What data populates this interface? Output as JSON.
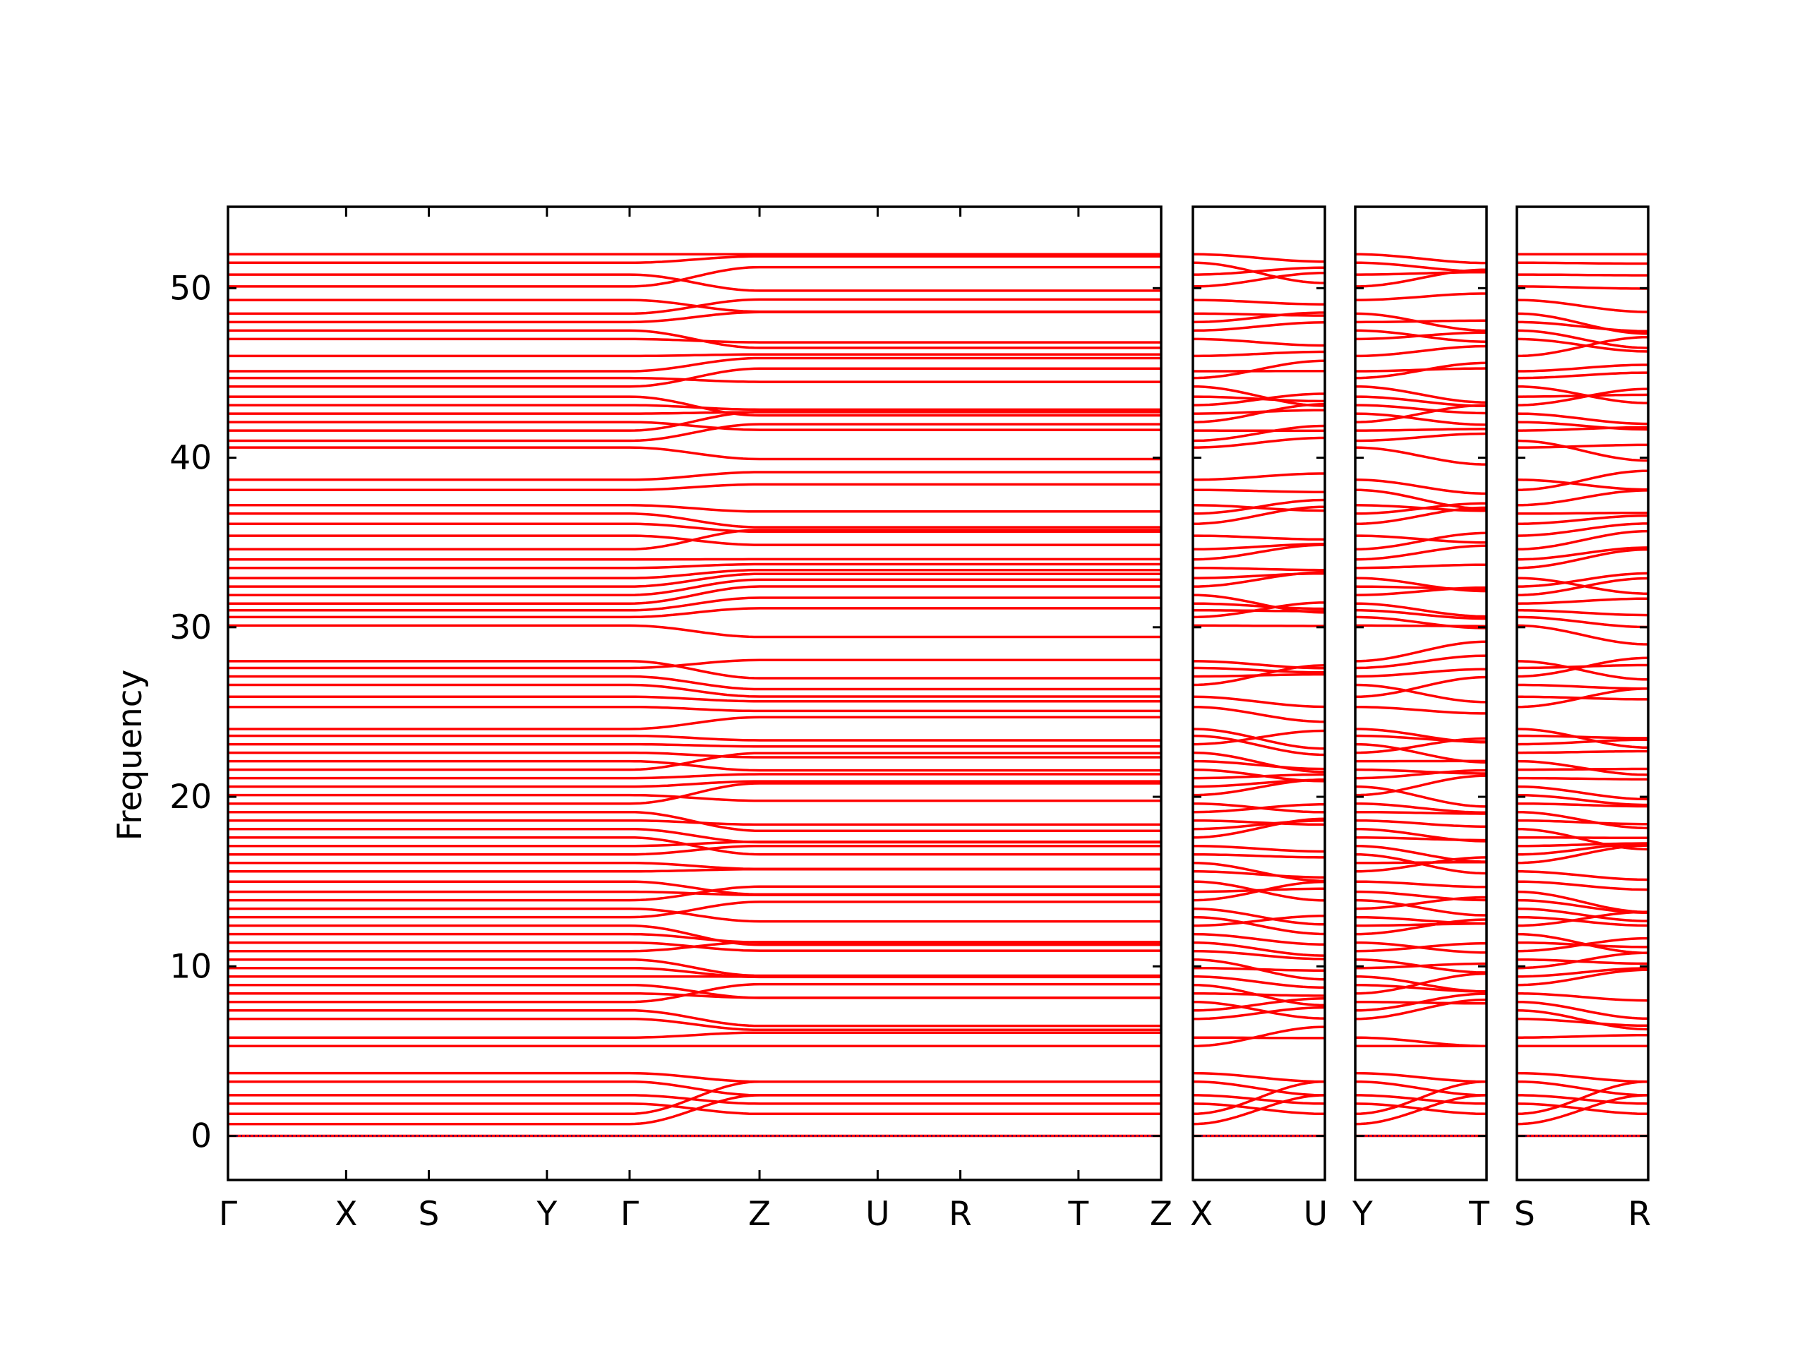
{
  "chart_data": {
    "type": "line",
    "ylabel": "Frequency",
    "ylim": [
      -2.6,
      54.8
    ],
    "yticks": [
      0,
      10,
      20,
      30,
      40,
      50
    ],
    "ytick_labels": [
      "0",
      "10",
      "20",
      "30",
      "40",
      "50"
    ],
    "grid": false,
    "colors": {
      "bands": "#ff0000",
      "zero_line": "#000080",
      "frame": "#000000"
    },
    "flat_frequencies": [
      0.0,
      0.7,
      1.3,
      1.9,
      2.4,
      3.2,
      3.7,
      5.3,
      5.8,
      6.9,
      7.4,
      7.9,
      8.4,
      8.9,
      9.4,
      9.9,
      10.4,
      10.9,
      11.4,
      11.9,
      12.4,
      12.9,
      13.4,
      13.9,
      14.4,
      15.0,
      15.6,
      16.1,
      16.6,
      17.1,
      17.6,
      18.1,
      18.6,
      19.1,
      19.6,
      20.1,
      20.6,
      21.1,
      21.6,
      22.1,
      22.6,
      23.1,
      23.6,
      24.0,
      25.3,
      25.9,
      26.6,
      27.1,
      27.6,
      28.0,
      30.1,
      30.6,
      31.0,
      31.4,
      31.9,
      32.4,
      32.9,
      33.5,
      34.0,
      34.6,
      35.4,
      36.1,
      36.7,
      37.2,
      38.1,
      38.7,
      40.6,
      41.0,
      41.6,
      42.1,
      42.6,
      43.1,
      43.6,
      44.2,
      44.7,
      45.1,
      46.0,
      47.0,
      47.5,
      48.0,
      48.5,
      49.3,
      50.1,
      50.8,
      51.5,
      52.0
    ],
    "panels": [
      {
        "segments": [
          {
            "from": "Γ",
            "to": "X",
            "length": 0.7
          },
          {
            "from": "X",
            "to": "S",
            "length": 0.49
          },
          {
            "from": "S",
            "to": "Y",
            "length": 0.7
          },
          {
            "from": "Y",
            "to": "Γ",
            "length": 0.49
          },
          {
            "from": "Γ",
            "to": "Z",
            "length": 0.77
          },
          {
            "from": "Z",
            "to": "U",
            "length": 0.7
          },
          {
            "from": "U",
            "to": "R",
            "length": 0.49
          },
          {
            "from": "R",
            "to": "T",
            "length": 0.7
          },
          {
            "from": "T",
            "to": "Z",
            "length": 0.49
          }
        ],
        "labels": [
          "Γ",
          "X",
          "S",
          "Y",
          "Γ",
          "Z",
          "U",
          "R",
          "T",
          "Z"
        ]
      },
      {
        "segments": [
          {
            "from": "X",
            "to": "U",
            "length": 0.77
          }
        ],
        "labels": [
          "X",
          "U"
        ]
      },
      {
        "segments": [
          {
            "from": "Y",
            "to": "T",
            "length": 0.77
          }
        ],
        "labels": [
          "Y",
          "T"
        ]
      },
      {
        "segments": [
          {
            "from": "S",
            "to": "R",
            "length": 0.77
          }
        ],
        "labels": [
          "S",
          "R"
        ]
      }
    ],
    "dispersive_segment_labels": [
      "Γ-Z",
      "X-U",
      "Y-T",
      "S-R"
    ]
  }
}
